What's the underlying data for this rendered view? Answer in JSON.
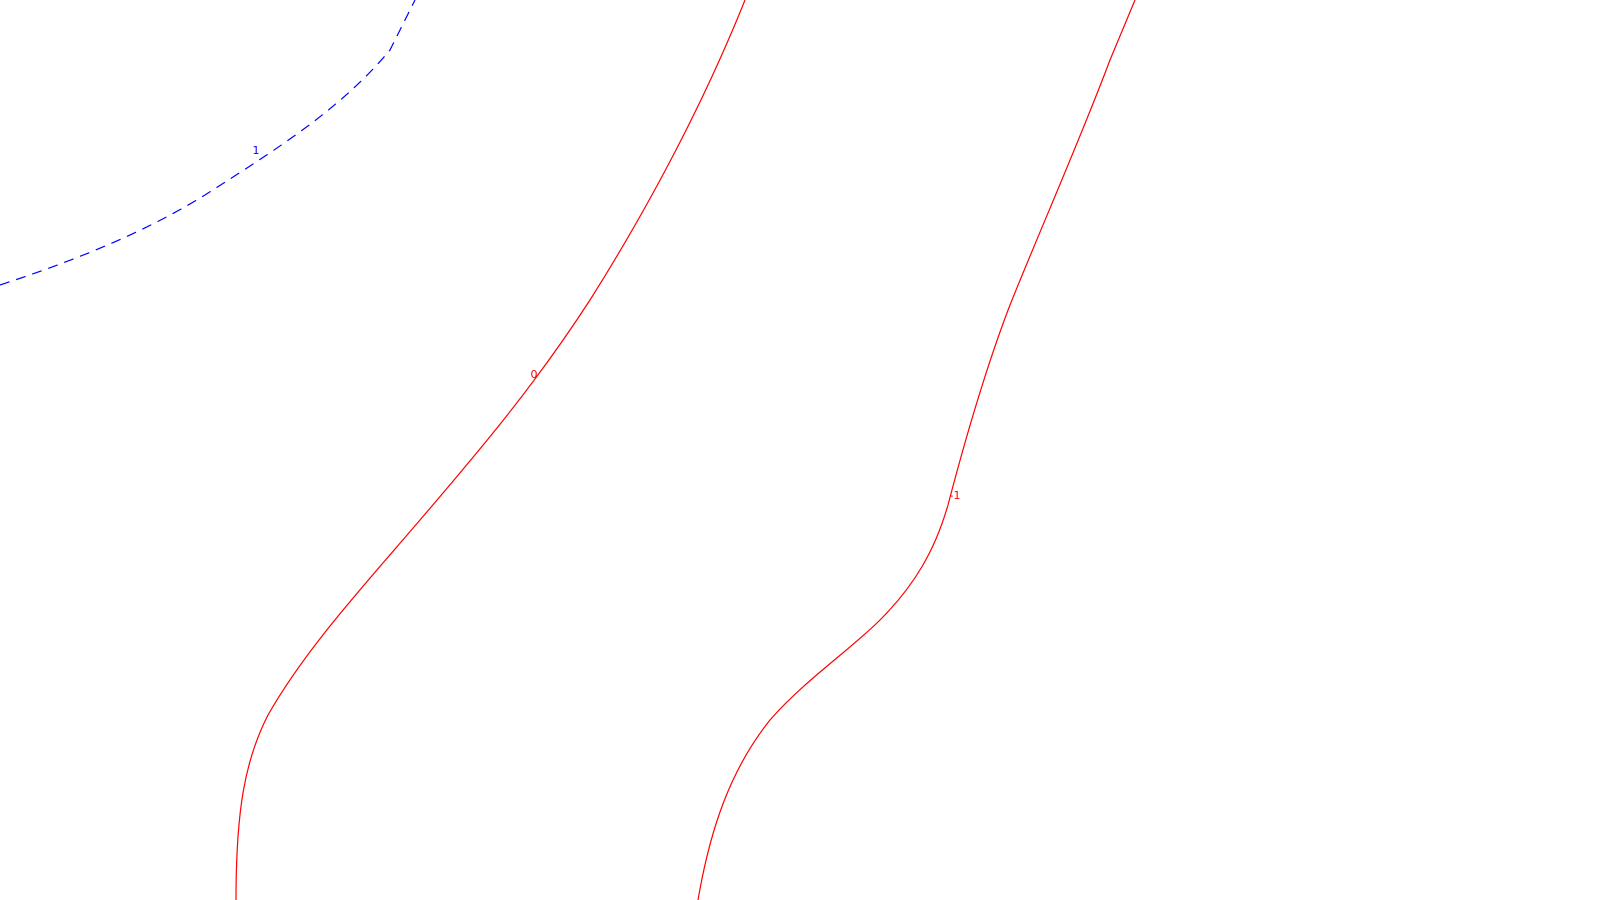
{
  "chart_data": {
    "type": "line",
    "title": "",
    "xlabel": "",
    "ylabel": "",
    "grid": false,
    "legend": "none",
    "series": [
      {
        "label": "1",
        "color": "#0000ff",
        "style": "dashed"
      },
      {
        "label": "0",
        "color": "#ff0000",
        "style": "solid"
      },
      {
        "label": "-1",
        "color": "#ff0000",
        "style": "solid"
      }
    ]
  }
}
